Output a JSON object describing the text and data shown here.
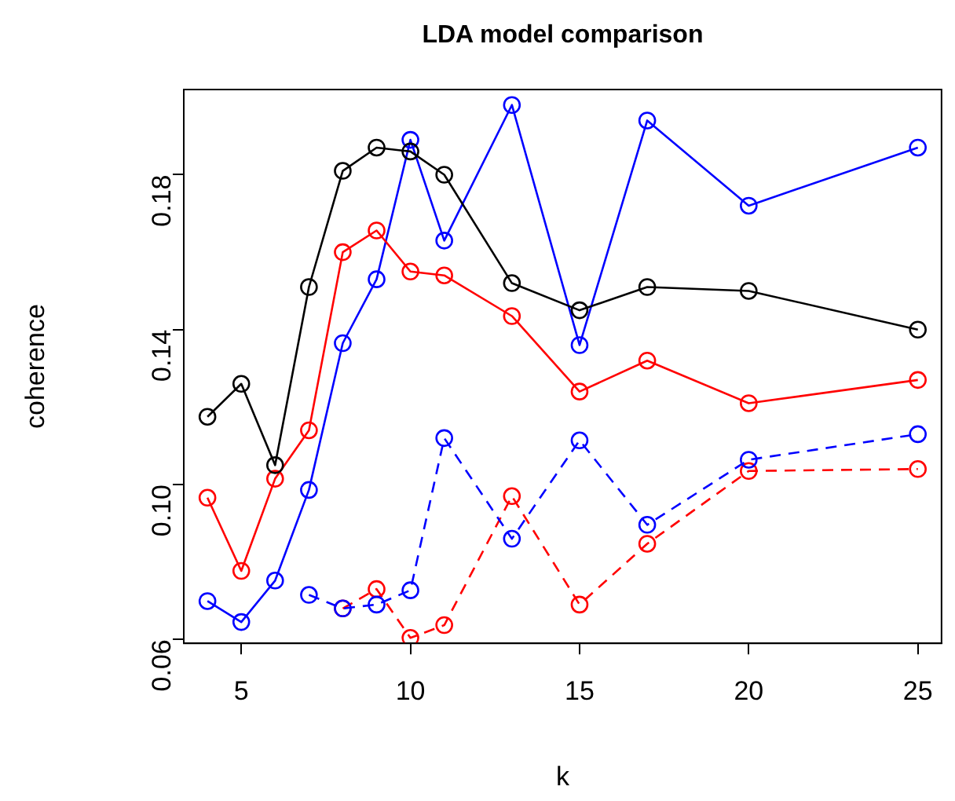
{
  "chart_data": {
    "type": "line",
    "title": "LDA model comparison",
    "xlabel": "k",
    "ylabel": "coherence",
    "x": [
      4,
      5,
      6,
      7,
      8,
      9,
      10,
      11,
      13,
      15,
      17,
      20,
      25
    ],
    "series": [
      {
        "color": "#000000",
        "line_style": "solid",
        "values": [
          0.1175,
          0.126,
          0.105,
          0.151,
          0.181,
          0.187,
          0.186,
          0.18,
          0.152,
          0.145,
          0.151,
          0.15,
          0.14
        ]
      },
      {
        "color": "#ff0000",
        "line_style": "solid",
        "values": [
          0.0966,
          0.0777,
          0.1015,
          0.114,
          0.16,
          0.1656,
          0.155,
          0.154,
          0.1435,
          0.124,
          0.132,
          0.121,
          0.127
        ]
      },
      {
        "color": "#0000ff",
        "line_style": "solid",
        "values": [
          0.0699,
          0.0645,
          0.0752,
          0.0986,
          0.1365,
          0.153,
          0.189,
          0.163,
          0.198,
          0.136,
          0.194,
          0.172,
          0.187
        ]
      },
      {
        "color": "#0000ff",
        "line_style": "dashed",
        "values": [
          null,
          null,
          null,
          0.0715,
          0.068,
          0.069,
          0.0727,
          0.112,
          0.086,
          0.1114,
          0.0896,
          0.1064,
          0.113
        ]
      },
      {
        "color": "#ff0000",
        "line_style": "dashed",
        "values": [
          null,
          null,
          null,
          null,
          0.068,
          0.073,
          0.0604,
          0.0637,
          0.097,
          0.069,
          0.0847,
          0.1035,
          0.104
        ]
      }
    ],
    "marker": "circle",
    "xlim": [
      3.3,
      25.7
    ],
    "xticks": [
      5,
      10,
      15,
      20,
      25
    ],
    "ylim": [
      0.059,
      0.202
    ],
    "yticks": [
      {
        "value": 0.06,
        "label": "0.06"
      },
      {
        "value": 0.1,
        "label": "0.10"
      },
      {
        "value": 0.14,
        "label": "0.14"
      },
      {
        "value": 0.18,
        "label": "0.18"
      }
    ],
    "grid": false,
    "legend": false
  }
}
